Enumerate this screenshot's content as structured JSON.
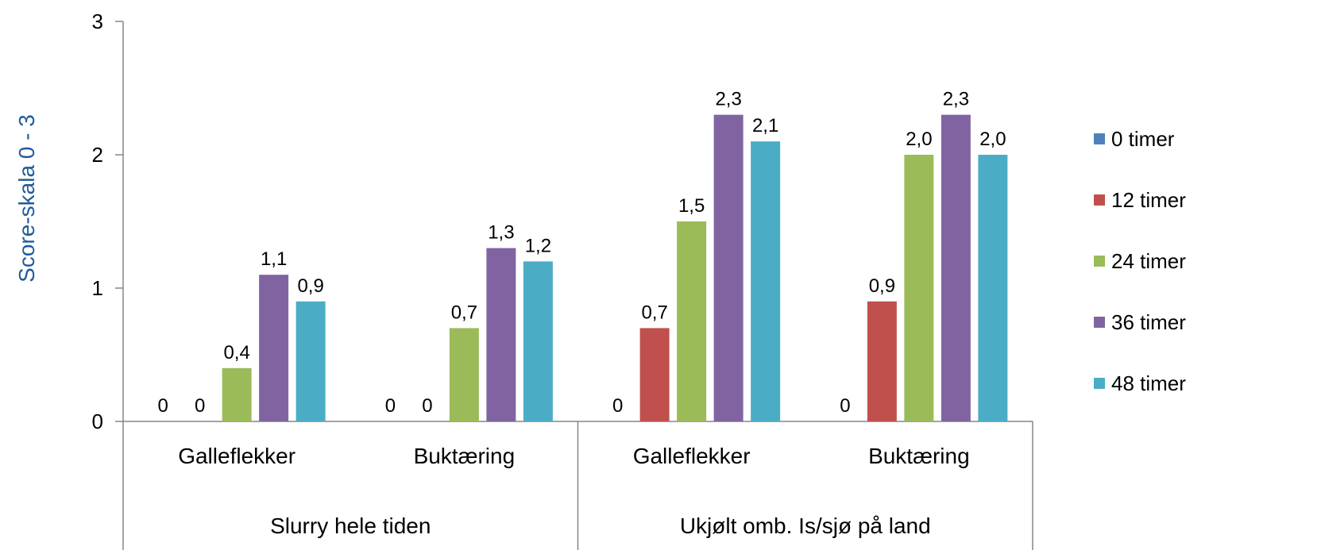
{
  "chart_data": {
    "type": "bar",
    "ylabel": "Score-skala 0 - 3",
    "ylim": [
      0,
      3
    ],
    "yticks": [
      "0",
      "1",
      "2",
      "3"
    ],
    "groups": [
      {
        "label": "Slurry hele tiden",
        "categories": [
          "Galleflekker",
          "Buktæring"
        ]
      },
      {
        "label": "Ukjølt omb. Is/sjø på land",
        "categories": [
          "Galleflekker",
          "Buktæring"
        ]
      }
    ],
    "categories": [
      "Galleflekker",
      "Buktæring",
      "Galleflekker",
      "Buktæring"
    ],
    "series": [
      {
        "name": "0 timer",
        "color": "#4F81BD",
        "values": [
          0,
          0,
          0,
          0
        ],
        "labels": [
          "0",
          "0",
          "0",
          "0"
        ]
      },
      {
        "name": "12 timer",
        "color": "#C0504D",
        "values": [
          0,
          0,
          0.7,
          0.9
        ],
        "labels": [
          "0",
          "0",
          "0,7",
          "0,9"
        ]
      },
      {
        "name": "24 timer",
        "color": "#9BBB59",
        "values": [
          0.4,
          0.7,
          1.5,
          2.0
        ],
        "labels": [
          "0,4",
          "0,7",
          "1,5",
          "2,0"
        ]
      },
      {
        "name": "36 timer",
        "color": "#8064A2",
        "values": [
          1.1,
          1.3,
          2.3,
          2.3
        ],
        "labels": [
          "1,1",
          "1,3",
          "2,3",
          "2,3"
        ]
      },
      {
        "name": "48 timer",
        "color": "#4BACC6",
        "values": [
          0.9,
          1.2,
          2.1,
          2.0
        ],
        "labels": [
          "0,9",
          "1,2",
          "2,1",
          "2,0"
        ]
      }
    ],
    "legend_position": "right",
    "ytitle_color": "#1F5C99"
  }
}
